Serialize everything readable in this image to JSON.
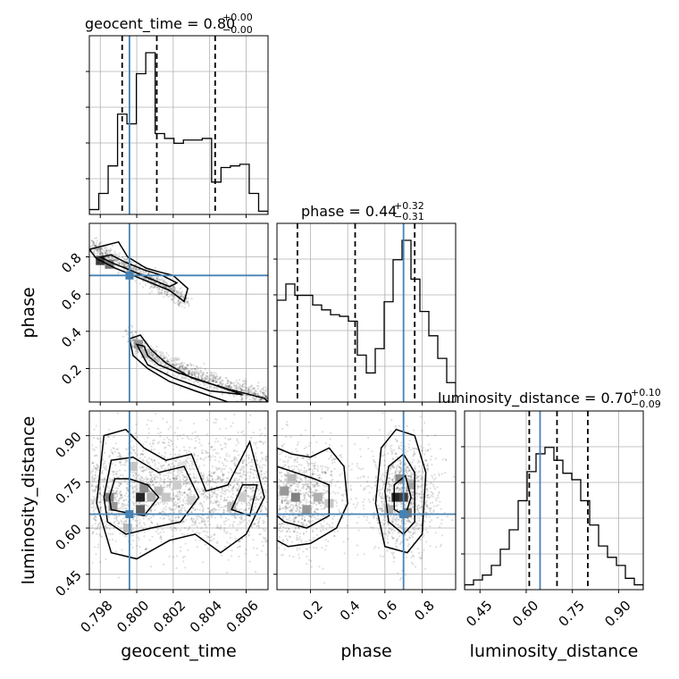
{
  "chart_data": {
    "type": "corner",
    "params": [
      "geocent_time",
      "phase",
      "luminosity_distance"
    ],
    "titles": [
      {
        "text": "geocent_time = 0.80",
        "sup": "+0.00",
        "sub": "−0.00"
      },
      {
        "text": "phase = 0.44",
        "sup": "+0.32",
        "sub": "−0.31"
      },
      {
        "text": "luminosity_distance = 0.70",
        "sup": "+0.10",
        "sub": "−0.09"
      }
    ],
    "axis_labels": [
      "geocent_time",
      "phase",
      "luminosity_distance"
    ],
    "ranges": [
      [
        0.7974,
        0.8072
      ],
      [
        0.02,
        0.98
      ],
      [
        0.4,
        0.98
      ]
    ],
    "ticks": [
      {
        "values": [
          0.798,
          0.8,
          0.802,
          0.804,
          0.806
        ],
        "labels": [
          "0.798",
          "0.800",
          "0.802",
          "0.804",
          "0.806"
        ]
      },
      {
        "values": [
          0.2,
          0.4,
          0.6,
          0.8
        ],
        "labels": [
          "0.2",
          "0.4",
          "0.6",
          "0.8"
        ]
      },
      {
        "values": [
          0.45,
          0.6,
          0.75,
          0.9
        ],
        "labels": [
          "0.45",
          "0.60",
          "0.75",
          "0.90"
        ]
      }
    ],
    "truths": [
      0.7996,
      0.7,
      0.645
    ],
    "quantiles": [
      [
        0.7992,
        0.8011,
        0.8043
      ],
      [
        0.13,
        0.44,
        0.76
      ],
      [
        0.61,
        0.7,
        0.8
      ]
    ],
    "histograms": [
      {
        "edges": [
          0.7974,
          0.8072
        ],
        "counts": [
          0.03,
          0.13,
          0.3,
          0.62,
          0.56,
          0.87,
          1.0,
          0.5,
          0.47,
          0.44,
          0.46,
          0.46,
          0.47,
          0.2,
          0.29,
          0.3,
          0.31,
          0.13,
          0.02
        ]
      },
      {
        "edges": [
          0.02,
          0.98
        ],
        "counts": [
          0.63,
          0.73,
          0.66,
          0.66,
          0.6,
          0.57,
          0.54,
          0.53,
          0.5,
          0.29,
          0.18,
          0.33,
          0.62,
          0.88,
          1.0,
          0.76,
          0.56,
          0.41,
          0.27,
          0.12
        ]
      },
      {
        "edges": [
          0.4,
          0.98
        ],
        "counts": [
          0.03,
          0.06,
          0.09,
          0.15,
          0.25,
          0.37,
          0.55,
          0.73,
          0.84,
          0.88,
          0.8,
          0.72,
          0.68,
          0.55,
          0.4,
          0.27,
          0.2,
          0.15,
          0.07,
          0.03
        ]
      }
    ],
    "density": {
      "phase_vs_geocent_time": "two diagonal bands: upper band from (0.798, 0.84) to (0.8027, 0.57); lower band from (0.8000, 0.36) curving through (0.801, 0.24) to (0.807, 0.04)",
      "luminosity_distance_vs_geocent_time": "broad region 0.55–0.93 in distance with peaks near 0.7987 and 0.8002",
      "luminosity_distance_vs_phase": "two blobs centred near phase 0.13 and 0.70 at distance ≈0.70"
    },
    "grid": true,
    "truth_color": "#4682b4"
  }
}
